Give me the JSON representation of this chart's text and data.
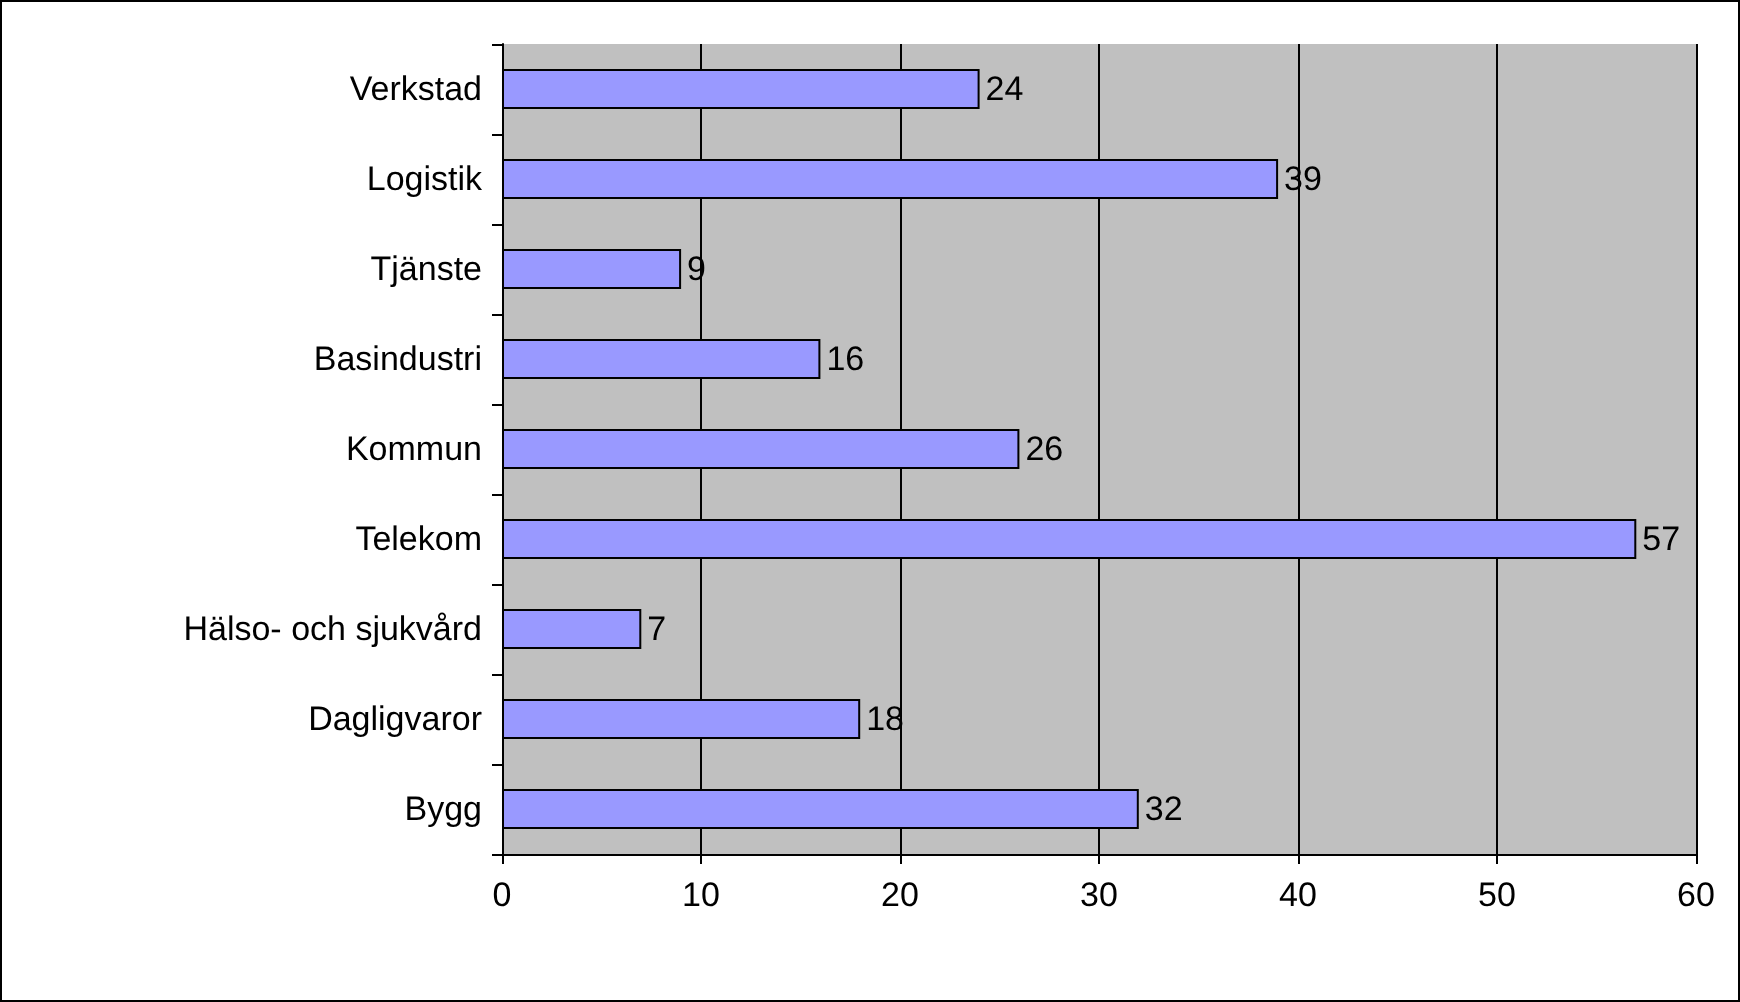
{
  "chart_data": {
    "type": "bar",
    "orientation": "horizontal",
    "categories": [
      "Verkstad",
      "Logistik",
      "Tjänste",
      "Basindustri",
      "Kommun",
      "Telekom",
      "Hälso- och sjukvård",
      "Dagligvaror",
      "Bygg"
    ],
    "values": [
      24,
      39,
      9,
      16,
      26,
      57,
      7,
      18,
      32
    ],
    "color": "#9999ff",
    "xlim": [
      0,
      60
    ],
    "xticks": [
      0,
      10,
      20,
      30,
      40,
      50,
      60
    ],
    "grid": "x",
    "data_labels": true
  }
}
